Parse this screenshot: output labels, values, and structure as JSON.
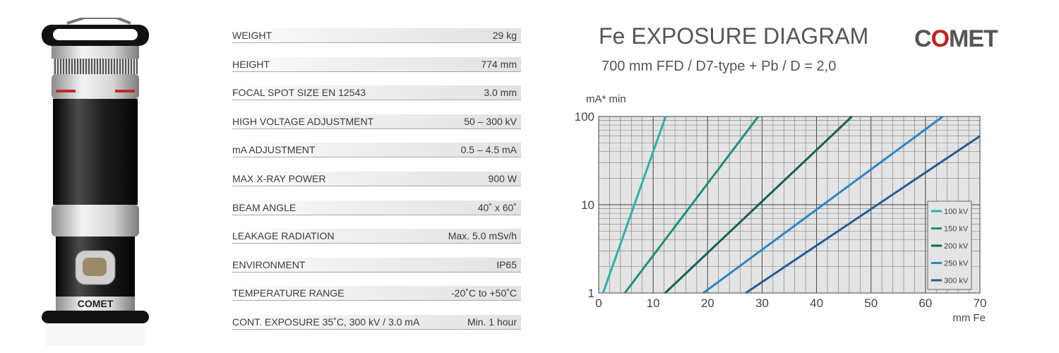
{
  "product": {
    "brand_label": "COMET"
  },
  "specs": [
    {
      "label": "WEIGHT",
      "value": "29 kg"
    },
    {
      "label": "HEIGHT",
      "value": "774 mm"
    },
    {
      "label": "FOCAL SPOT SIZE EN 12543",
      "value": "3.0 mm"
    },
    {
      "label": "HIGH VOLTAGE ADJUSTMENT",
      "value": "50 – 300 kV"
    },
    {
      "label": "mA ADJUSTMENT",
      "value": "0.5 – 4.5 mA"
    },
    {
      "label": "MAX X-RAY POWER",
      "value": "900 W"
    },
    {
      "label": "BEAM ANGLE",
      "value": "40˚ x 60˚"
    },
    {
      "label": "LEAKAGE RADIATION",
      "value": "Max. 5.0 mSv/h"
    },
    {
      "label": "ENVIRONMENT",
      "value": "IP65"
    },
    {
      "label": "TEMPERATURE RANGE",
      "value": "-20˚C to +50˚C"
    },
    {
      "label": "CONT. EXPOSURE  35˚C, 300 kV / 3.0 mA",
      "value": "Min. 1 hour"
    }
  ],
  "header": {
    "title": "Fe EXPOSURE DIAGRAM",
    "subtitle": "700 mm FFD / D7-type + Pb / D = 2,0",
    "logo_pre": "C",
    "logo_o": "O",
    "logo_post": "MET"
  },
  "chart_data": {
    "type": "line",
    "title": "Fe EXPOSURE DIAGRAM",
    "subtitle": "700 mm FFD / D7-type + Pb / D = 2,0",
    "xlabel": "mm Fe",
    "ylabel": "mA* min",
    "xlim": [
      0,
      70
    ],
    "ylim": [
      1,
      100
    ],
    "y_scale": "log",
    "grid": true,
    "legend_position": "bottom-right",
    "x_ticks": [
      "0",
      "10",
      "20",
      "30",
      "40",
      "50",
      "60",
      "70"
    ],
    "y_ticks": [
      "1",
      "10",
      "100"
    ],
    "series": [
      {
        "name": "100 kV",
        "color": "#2ab3a8",
        "x": [
          0.8,
          12.3
        ],
        "y": [
          1,
          100
        ]
      },
      {
        "name": "150 kV",
        "color": "#1e8f7e",
        "x": [
          4.8,
          29.3
        ],
        "y": [
          1,
          100
        ]
      },
      {
        "name": "200 kV",
        "color": "#155f58",
        "x": [
          12.2,
          46.5
        ],
        "y": [
          1,
          100
        ]
      },
      {
        "name": "250 kV",
        "color": "#2a86c6",
        "x": [
          19.2,
          63.2
        ],
        "y": [
          1,
          100
        ]
      },
      {
        "name": "300 kV",
        "color": "#1f5e99",
        "x": [
          27.0,
          70.0
        ],
        "y": [
          1,
          60
        ]
      }
    ]
  }
}
